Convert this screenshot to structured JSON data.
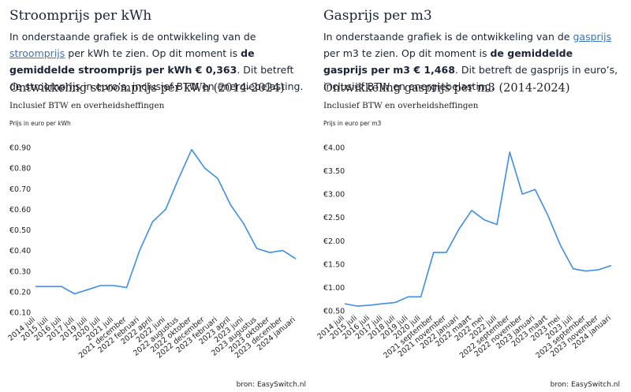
{
  "sections": [
    {
      "heading": "Stroomprijs per kWh",
      "text_1": "In onderstaande grafiek is de ontwikkeling van de ",
      "link": "stroomprijs",
      "text_2": " per kWh te zien. Op dit moment is ",
      "bold": "de gemiddelde stroomprijs per kWh € 0,363",
      "text_3": ". Dit betreft de stroomprijs in euro’s, inclusief BTW en energiebelasting."
    },
    {
      "heading": "Gasprijs per m3",
      "text_1": "In onderstaande grafiek is de ontwikkeling van de ",
      "link": "gasprijs",
      "text_2": " per m3 te zien. Op dit moment is ",
      "bold": "de gemiddelde gasprijs per m3 € 1,468",
      "text_3": ". Dit betreft de gasprijs in euro’s, inclusief BTW en energiebelasting."
    }
  ],
  "chart_data": [
    {
      "type": "line",
      "title": "Ontwikkeling stroomprijs per kWh (2014-2024)",
      "subtitle": "Inclusief BTW en overheidsheffingen",
      "y_axis_label": "Prijs in euro per kWh",
      "source": "bron: EasySwitch.nl",
      "categories": [
        "2014 juli",
        "2015 juli",
        "2016 juli",
        "2017 juli",
        "2019 juli",
        "2020 juli",
        "2021 juli",
        "2021 december",
        "2022 februari",
        "2022 april",
        "2022 juni",
        "2022 augustus",
        "2022 oktober",
        "2022 december",
        "2023 februari",
        "2023 april",
        "2023 juni",
        "2023 augustus",
        "2023 oktober",
        "2023 december",
        "2024 januari"
      ],
      "values": [
        0.225,
        0.225,
        0.225,
        0.19,
        0.21,
        0.23,
        0.23,
        0.22,
        0.4,
        0.54,
        0.6,
        0.75,
        0.89,
        0.8,
        0.75,
        0.62,
        0.53,
        0.41,
        0.39,
        0.4,
        0.36
      ],
      "color": "#3d8ee8",
      "grid": false,
      "ylim": [
        0.1,
        0.9
      ],
      "yticks": [
        {
          "value": 0.1,
          "label": "€0.10"
        },
        {
          "value": 0.2,
          "label": "€0.20"
        },
        {
          "value": 0.3,
          "label": "€0.30"
        },
        {
          "value": 0.4,
          "label": "€0.40"
        },
        {
          "value": 0.5,
          "label": "€0.50"
        },
        {
          "value": 0.6,
          "label": "€0.60"
        },
        {
          "value": 0.7,
          "label": "€0.70"
        },
        {
          "value": 0.8,
          "label": "€0.80"
        },
        {
          "value": 0.9,
          "label": "€0.90"
        }
      ]
    },
    {
      "type": "line",
      "title": "Ontwikkeling gasprijs per m3 (2014-2024)",
      "subtitle": "Inclusief BTW en overheidsheffingen",
      "y_axis_label": "Prijs in euro per m3",
      "source": "bron: EasySwitch.nl",
      "categories": [
        "2014 juli",
        "2015 juli",
        "2016 juli",
        "2017 juli",
        "2018 juli",
        "2019 juli",
        "2020 juli",
        "2021 september",
        "2021 november",
        "2022 januari",
        "2022 maart",
        "2022 mei",
        "2022 juli",
        "2022 september",
        "2022 november",
        "2023 januari",
        "2023 maart",
        "2023 mei",
        "2023 juli",
        "2023 september",
        "2023 november",
        "2024 januari"
      ],
      "values": [
        0.65,
        0.6,
        0.62,
        0.65,
        0.68,
        0.8,
        0.8,
        1.75,
        1.75,
        2.25,
        2.65,
        2.45,
        2.35,
        3.9,
        3.0,
        3.1,
        2.55,
        1.9,
        1.4,
        1.35,
        1.38,
        1.47
      ],
      "color": "#3d8ee8",
      "grid": false,
      "ylim": [
        0.5,
        4.0
      ],
      "yticks": [
        {
          "value": 0.5,
          "label": "€0.50"
        },
        {
          "value": 1.0,
          "label": "€1.00"
        },
        {
          "value": 1.5,
          "label": "€1.50"
        },
        {
          "value": 2.0,
          "label": "€2.00"
        },
        {
          "value": 2.5,
          "label": "€2.50"
        },
        {
          "value": 3.0,
          "label": "€3.00"
        },
        {
          "value": 3.5,
          "label": "€3.50"
        },
        {
          "value": 4.0,
          "label": "€4.00"
        }
      ]
    }
  ]
}
